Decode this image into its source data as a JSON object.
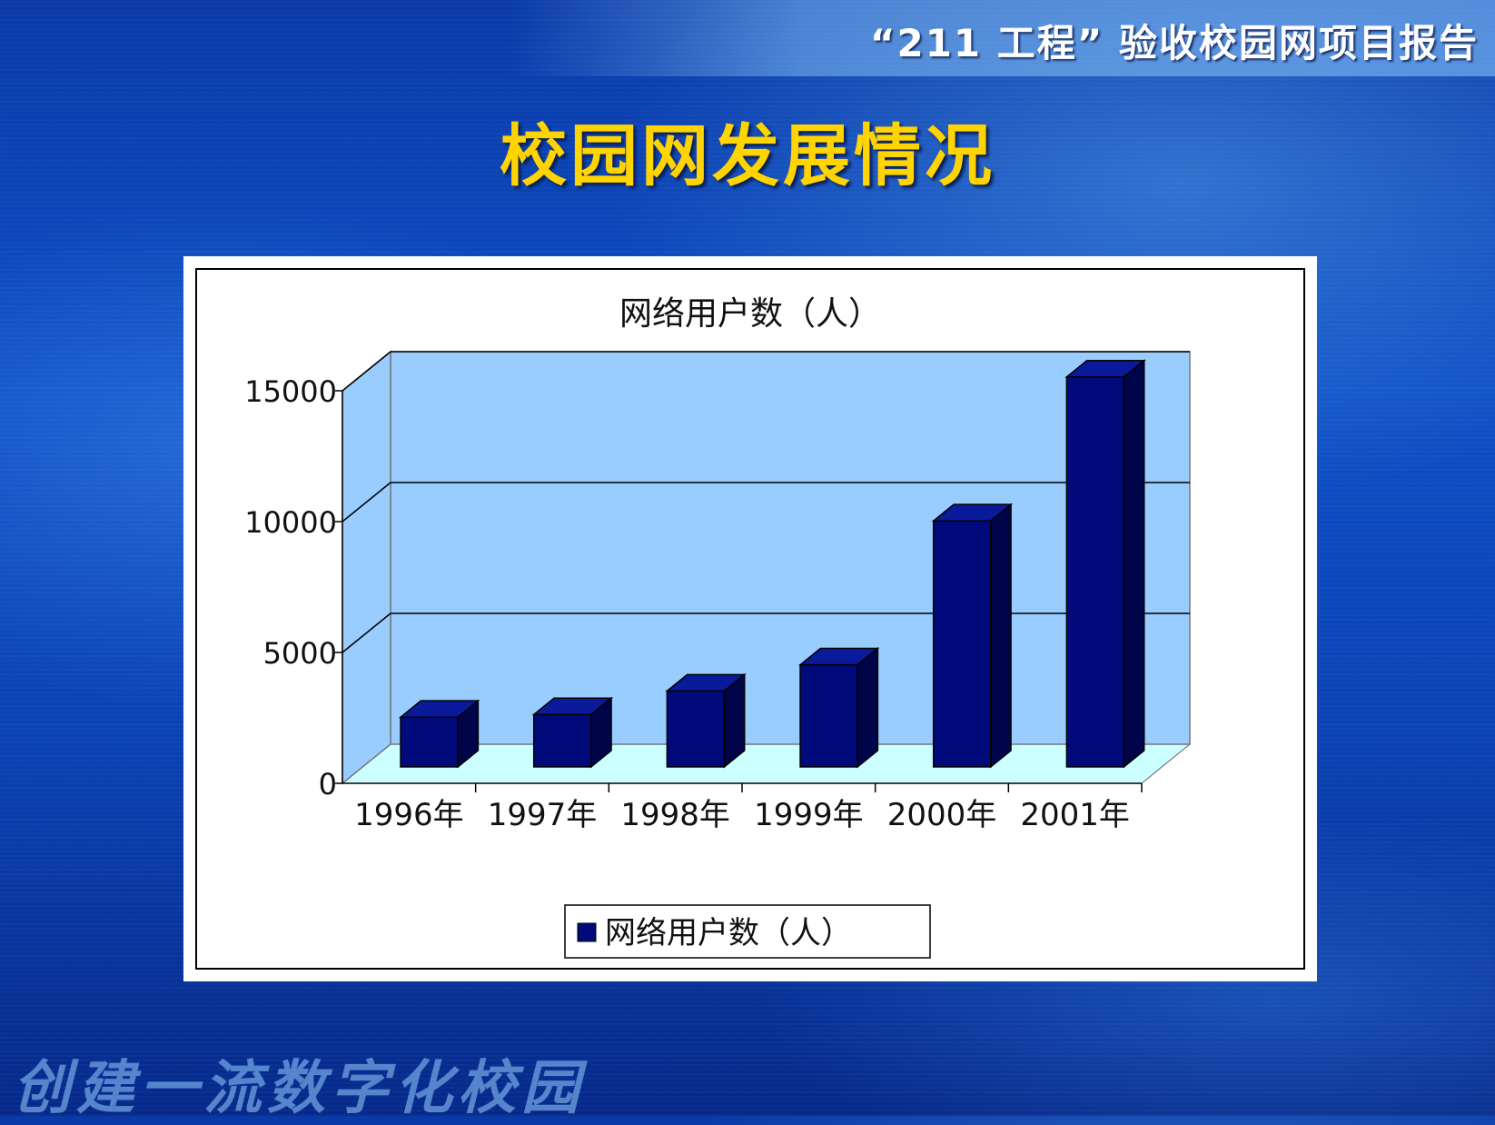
{
  "header": {
    "report_title": "“211 工程” 验收校园网项目报告"
  },
  "slide": {
    "title": "校园网发展情况"
  },
  "footer": {
    "slogan": "创建一流数字化校园"
  },
  "colors": {
    "bar_front": "#000a7a",
    "bar_top": "#0a1a9a",
    "bar_side": "#00054a",
    "back_wall": "#99ccff",
    "floor": "#ccffff",
    "title_yellow": "#ffd400"
  },
  "chart_data": {
    "type": "bar",
    "title": "网络用户数（人）",
    "categories": [
      "1996年",
      "1997年",
      "1998年",
      "1999年",
      "2000年",
      "2001年"
    ],
    "series": [
      {
        "name": "网络用户数（人）",
        "values": [
          1900,
          2000,
          2900,
          3900,
          9400,
          14900
        ]
      }
    ],
    "yticks": [
      0,
      5000,
      10000,
      15000
    ],
    "ylim": [
      0,
      15000
    ],
    "grid": true,
    "legend": "bottom",
    "three_d": true
  }
}
